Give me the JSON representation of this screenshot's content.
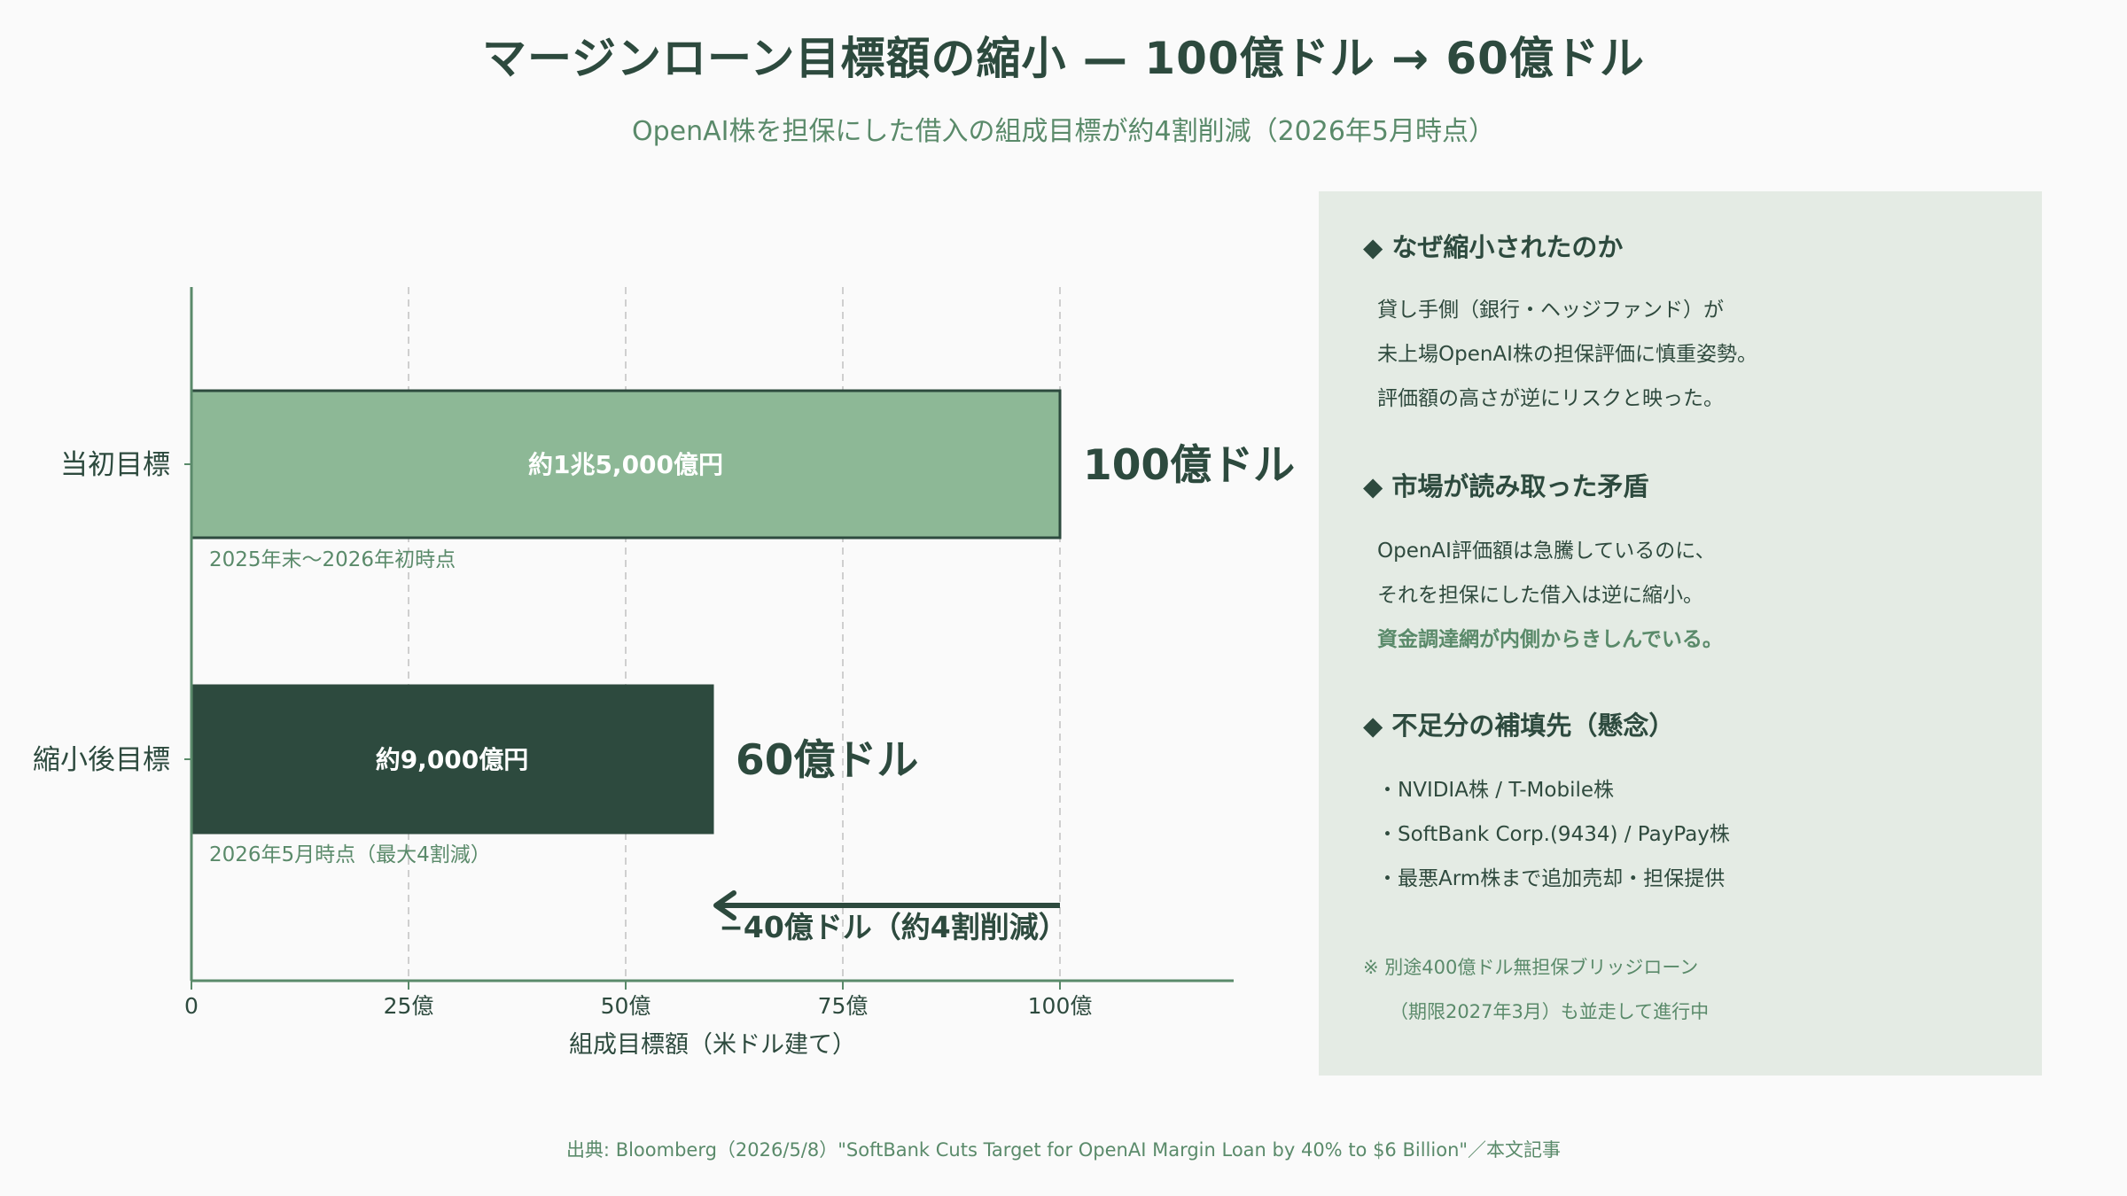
{
  "title": "マージンローン目標額の縮小 — 100億ドル → 60億ドル",
  "subtitle": "OpenAI株を担保にした借入の組成目標が約4割削減（2026年5月時点）",
  "chart_data": {
    "type": "bar",
    "orientation": "horizontal",
    "categories": [
      "当初目標",
      "縮小後目標"
    ],
    "values": [
      100,
      60
    ],
    "value_unit": "億ドル",
    "bar_labels": [
      "約1兆5,000億円",
      "約9,000億円"
    ],
    "end_labels": [
      "100億ドル",
      "60億ドル"
    ],
    "bar_notes": [
      "2025年末〜2026年初時点",
      "2026年5月時点（最大4割減）"
    ],
    "bar_colors": [
      "#8db896",
      "#2d4a3e"
    ],
    "xlabel": "組成目標額（米ドル建て）",
    "xlim": [
      0,
      120
    ],
    "xticks": [
      0,
      25,
      50,
      75,
      100
    ],
    "xtick_labels": [
      "0",
      "25億",
      "50億",
      "75億",
      "100億"
    ],
    "grid": "vertical dashed",
    "annotation": {
      "from": 100,
      "to": 60,
      "text": "−40億ドル（約4割削減）"
    }
  },
  "panel": {
    "sections": [
      {
        "heading": "◆ なぜ縮小されたのか",
        "lines": [
          "貸し手側（銀行・ヘッジファンド）が",
          "未上場OpenAI株の担保評価に慎重姿勢。",
          "評価額の高さが逆にリスクと映った。"
        ]
      },
      {
        "heading": "◆ 市場が読み取った矛盾",
        "lines": [
          "OpenAI評価額は急騰しているのに、",
          "それを担保にした借入は逆に縮小。"
        ],
        "emphasis": "資金調達網が内側からきしんでいる。"
      },
      {
        "heading": "◆ 不足分の補填先（懸念）",
        "lines": [
          "・NVIDIA株 / T-Mobile株",
          "・SoftBank Corp.(9434) / PayPay株",
          "・最悪Arm株まで追加売却・担保提供"
        ]
      }
    ],
    "note_lines": [
      "※ 別途400億ドル無担保ブリッジローン",
      "（期限2027年3月）も並走して進行中"
    ]
  },
  "source": "出典: Bloomberg（2026/5/8）\"SoftBank Cuts Target for OpenAI Margin Loan by 40% to $6 Billion\"／本文記事",
  "colors": {
    "dark": "#2d4a3e",
    "light": "#8db896",
    "accent": "#5a8a6a",
    "panel_bg": "#e4ebe4"
  }
}
